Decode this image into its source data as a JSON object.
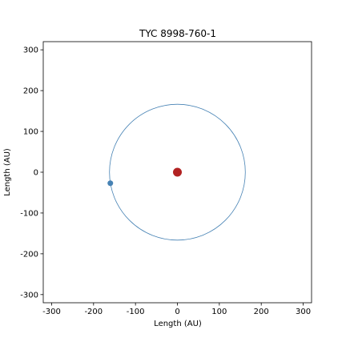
{
  "chart_data": {
    "type": "scatter",
    "title": "TYC 8998-760-1",
    "xlabel": "Length (AU)",
    "ylabel": "Length (AU)",
    "xlim": [
      -320,
      320
    ],
    "ylim": [
      -320,
      320
    ],
    "xticks": [
      -300,
      -200,
      -100,
      0,
      100,
      200,
      300
    ],
    "yticks": [
      -300,
      -200,
      -100,
      0,
      100,
      200,
      300
    ],
    "grid": false,
    "star": {
      "x": 0,
      "y": 0,
      "color": "#b22222"
    },
    "orbit": {
      "cx": 0,
      "cy": 0,
      "radius": 162,
      "color": "#4682b4"
    },
    "planet": {
      "x": -160,
      "y": -27,
      "color": "#4682b4"
    }
  }
}
